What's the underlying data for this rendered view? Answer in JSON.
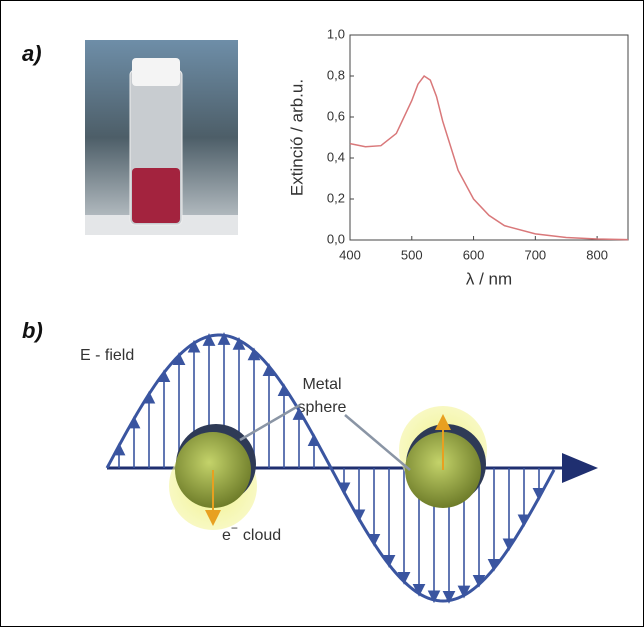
{
  "panels": {
    "a": "a)",
    "b": "b)"
  },
  "chart_data": {
    "type": "line",
    "xlabel": "λ / nm",
    "ylabel": "Extinció / arb.u.",
    "x": [
      400,
      425,
      450,
      475,
      500,
      510,
      520,
      530,
      540,
      550,
      575,
      600,
      625,
      650,
      700,
      750,
      800,
      850
    ],
    "values": [
      0.47,
      0.455,
      0.46,
      0.52,
      0.68,
      0.76,
      0.8,
      0.78,
      0.7,
      0.58,
      0.34,
      0.2,
      0.12,
      0.07,
      0.03,
      0.012,
      0.005,
      0.002
    ],
    "color": "#d9787a",
    "xlim": [
      400,
      850
    ],
    "xticks": [
      400,
      500,
      600,
      700,
      800
    ],
    "ylim": [
      0,
      1
    ],
    "yticks": [
      {
        "value": 0,
        "label": "0,0"
      },
      {
        "value": 0.2,
        "label": "0,2"
      },
      {
        "value": 0.4,
        "label": "0,4"
      },
      {
        "value": 0.6,
        "label": "0,6"
      },
      {
        "value": 0.8,
        "label": "0,8"
      },
      {
        "value": 1,
        "label": "1,0"
      }
    ]
  },
  "diagram": {
    "field_label": "E - field",
    "sphere_label": [
      "Metal",
      "sphere"
    ],
    "cloud_label": {
      "symbol": "e",
      "charge": "−",
      "text": "cloud"
    }
  }
}
